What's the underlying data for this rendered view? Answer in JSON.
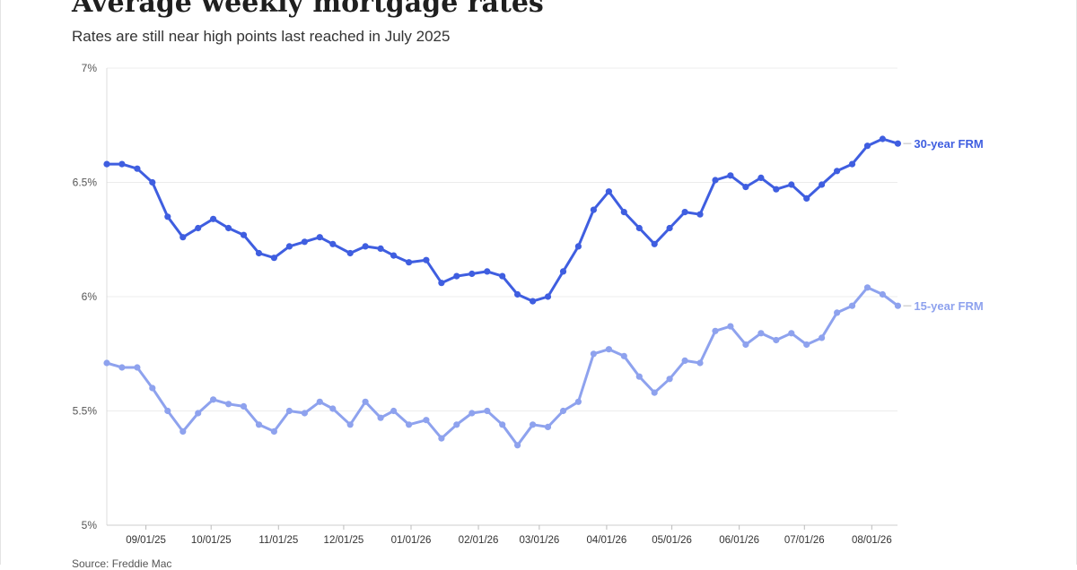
{
  "title": "Average weekly mortgage rates",
  "subtitle": "Rates are still near high points last reached in July 2025",
  "source": "Source: Freddie Mac",
  "chart_data": {
    "type": "line",
    "xlabel": "",
    "ylabel": "",
    "ylim": [
      5,
      7
    ],
    "grid": true,
    "legend_placement": "direct labels at right end of lines",
    "y_ticks": [
      "5%",
      "5.5%",
      "6%",
      "6.5%",
      "7%"
    ],
    "x_ticks": [
      "09/01/25",
      "10/01/25",
      "11/01/25",
      "12/01/25",
      "01/01/26",
      "02/01/26",
      "03/01/26",
      "04/01/26",
      "05/01/26",
      "06/01/26",
      "07/01/26",
      "08/01/26"
    ],
    "x": [
      "08/14/25",
      "08/21/25",
      "08/28/25",
      "09/04/25",
      "09/11/25",
      "09/18/25",
      "09/25/25",
      "10/02/25",
      "10/09/25",
      "10/16/25",
      "10/23/25",
      "10/30/25",
      "11/06/25",
      "11/13/25",
      "11/20/25",
      "11/26/25",
      "12/04/25",
      "12/11/25",
      "12/18/25",
      "12/24/25",
      "12/31/25",
      "01/08/26",
      "01/15/26",
      "01/22/26",
      "01/29/26",
      "02/05/26",
      "02/12/26",
      "02/19/26",
      "02/26/26",
      "03/05/26",
      "03/12/26",
      "03/19/26",
      "03/26/26",
      "04/02/26",
      "04/09/26",
      "04/16/26",
      "04/23/26",
      "04/30/26",
      "05/07/26",
      "05/14/26",
      "05/21/26",
      "05/28/26",
      "06/04/26",
      "06/11/26",
      "06/18/26",
      "06/25/26",
      "07/02/26",
      "07/09/26",
      "07/16/26",
      "07/23/26",
      "07/30/26",
      "08/06/26",
      "08/13/26"
    ],
    "series": [
      {
        "name": "30-year FRM",
        "color": "#3f5ee0",
        "values": [
          6.58,
          6.58,
          6.56,
          6.5,
          6.35,
          6.26,
          6.3,
          6.34,
          6.3,
          6.27,
          6.19,
          6.17,
          6.22,
          6.24,
          6.26,
          6.23,
          6.19,
          6.22,
          6.21,
          6.18,
          6.15,
          6.16,
          6.06,
          6.09,
          6.1,
          6.11,
          6.09,
          6.01,
          5.98,
          6.0,
          6.11,
          6.22,
          6.38,
          6.46,
          6.37,
          6.3,
          6.23,
          6.3,
          6.37,
          6.36,
          6.51,
          6.53,
          6.48,
          6.52,
          6.47,
          6.49,
          6.43,
          6.49,
          6.55,
          6.58,
          6.66,
          6.69,
          6.67
        ]
      },
      {
        "name": "15-year FRM",
        "color": "#8ea2ee",
        "values": [
          5.71,
          5.69,
          5.69,
          5.6,
          5.5,
          5.41,
          5.49,
          5.55,
          5.53,
          5.52,
          5.44,
          5.41,
          5.5,
          5.49,
          5.54,
          5.51,
          5.44,
          5.54,
          5.47,
          5.5,
          5.44,
          5.46,
          5.38,
          5.44,
          5.49,
          5.5,
          5.44,
          5.35,
          5.44,
          5.43,
          5.5,
          5.54,
          5.75,
          5.77,
          5.74,
          5.65,
          5.58,
          5.64,
          5.72,
          5.71,
          5.85,
          5.87,
          5.79,
          5.84,
          5.81,
          5.84,
          5.79,
          5.82,
          5.93,
          5.96,
          6.04,
          6.01,
          5.96
        ]
      }
    ]
  }
}
